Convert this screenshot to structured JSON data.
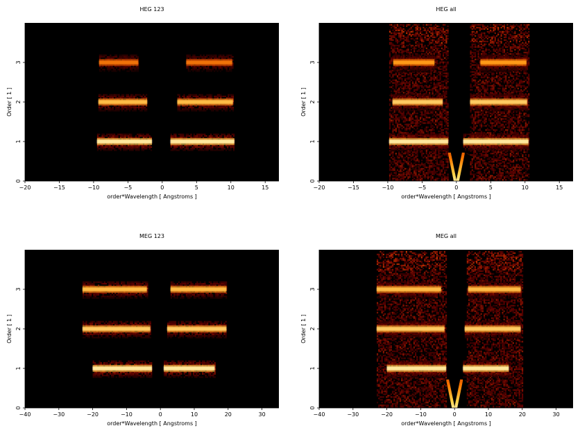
{
  "chart_data": [
    {
      "type": "heatmap",
      "title": "HEG 123",
      "xlabel": "order*Wavelength [ Angstroms ]",
      "ylabel": "Order [ 1 ]",
      "xlim": [
        -20,
        17
      ],
      "ylim": [
        0,
        4
      ],
      "xticks": [
        -20,
        -15,
        -10,
        -5,
        0,
        5,
        10,
        15
      ],
      "yticks": [
        0,
        1,
        2,
        3
      ],
      "background": "#000000",
      "colormap": [
        "#000000",
        "#5a0000",
        "#b52a00",
        "#ff7a00",
        "#ffd54a",
        "#ffffff"
      ],
      "bands": [
        {
          "order": 1,
          "xmin": -9.5,
          "xmax": -1.5,
          "intensity": 1.0
        },
        {
          "order": 1,
          "xmin": 1.2,
          "xmax": 10.5,
          "intensity": 1.0
        },
        {
          "order": 2,
          "xmin": -9.3,
          "xmax": -2.2,
          "intensity": 0.85
        },
        {
          "order": 2,
          "xmin": 2.2,
          "xmax": 10.3,
          "intensity": 0.85
        },
        {
          "order": 3,
          "xmin": -9.2,
          "xmax": -3.5,
          "intensity": 0.65
        },
        {
          "order": 3,
          "xmin": 3.5,
          "xmax": 10.2,
          "intensity": 0.65
        }
      ]
    },
    {
      "type": "heatmap",
      "title": "HEG all",
      "xlabel": "order*Wavelength [ Angstroms ]",
      "ylabel": "Order [ 1 ]",
      "xlim": [
        -20,
        17
      ],
      "ylim": [
        0,
        4
      ],
      "xticks": [
        -20,
        -15,
        -10,
        -5,
        0,
        5,
        10,
        15
      ],
      "yticks": [
        0,
        1,
        2,
        3
      ],
      "background": "#000000",
      "colormap": [
        "#000000",
        "#5a0000",
        "#b52a00",
        "#ff7a00",
        "#ffd54a",
        "#ffffff"
      ],
      "bands": [
        {
          "order": 1,
          "xmin": -9.8,
          "xmax": -1.2,
          "intensity": 1.0
        },
        {
          "order": 1,
          "xmin": 1.0,
          "xmax": 10.5,
          "intensity": 1.0
        },
        {
          "order": 2,
          "xmin": -9.3,
          "xmax": -2.0,
          "intensity": 0.9
        },
        {
          "order": 2,
          "xmin": 2.0,
          "xmax": 10.3,
          "intensity": 0.9
        },
        {
          "order": 3,
          "xmin": -9.2,
          "xmax": -3.2,
          "intensity": 0.75
        },
        {
          "order": 3,
          "xmin": 3.5,
          "xmax": 10.2,
          "intensity": 0.75
        }
      ],
      "noise": {
        "xmin": -9.8,
        "xmax": 10.5,
        "gap": [
          -1.2,
          1.8
        ],
        "level": 0.35
      },
      "zero_order_v": true
    },
    {
      "type": "heatmap",
      "title": "MEG 123",
      "xlabel": "order*Wavelength [ Angstroms ]",
      "ylabel": "Order [ 1 ]",
      "xlim": [
        -40,
        35
      ],
      "ylim": [
        0,
        4
      ],
      "xticks": [
        -40,
        -30,
        -20,
        -10,
        0,
        10,
        20,
        30
      ],
      "yticks": [
        0,
        1,
        2,
        3
      ],
      "background": "#000000",
      "colormap": [
        "#000000",
        "#5a0000",
        "#b52a00",
        "#ff7a00",
        "#ffd54a",
        "#ffffff"
      ],
      "bands": [
        {
          "order": 1,
          "xmin": -20,
          "xmax": -2.5,
          "intensity": 1.0
        },
        {
          "order": 1,
          "xmin": 1.0,
          "xmax": 16,
          "intensity": 1.0
        },
        {
          "order": 2,
          "xmin": -23,
          "xmax": -3,
          "intensity": 0.9
        },
        {
          "order": 2,
          "xmin": 2.0,
          "xmax": 19.5,
          "intensity": 0.9
        },
        {
          "order": 3,
          "xmin": -23,
          "xmax": -4,
          "intensity": 0.85
        },
        {
          "order": 3,
          "xmin": 3.0,
          "xmax": 19.5,
          "intensity": 0.85
        }
      ]
    },
    {
      "type": "heatmap",
      "title": "MEG all",
      "xlabel": "order*Wavelength [ Angstroms ]",
      "ylabel": "Order [ 1 ]",
      "xlim": [
        -40,
        35
      ],
      "ylim": [
        0,
        4
      ],
      "xticks": [
        -40,
        -30,
        -20,
        -10,
        0,
        10,
        20,
        30
      ],
      "yticks": [
        0,
        1,
        2,
        3
      ],
      "background": "#000000",
      "colormap": [
        "#000000",
        "#5a0000",
        "#b52a00",
        "#ff7a00",
        "#ffd54a",
        "#ffffff"
      ],
      "bands": [
        {
          "order": 1,
          "xmin": -20,
          "xmax": -2.5,
          "intensity": 1.0
        },
        {
          "order": 1,
          "xmin": 2.5,
          "xmax": 16,
          "intensity": 1.0
        },
        {
          "order": 2,
          "xmin": -23,
          "xmax": -3,
          "intensity": 0.9
        },
        {
          "order": 2,
          "xmin": 3.0,
          "xmax": 19.5,
          "intensity": 0.9
        },
        {
          "order": 3,
          "xmin": -23,
          "xmax": -4,
          "intensity": 0.85
        },
        {
          "order": 3,
          "xmin": 4.0,
          "xmax": 19.5,
          "intensity": 0.85
        }
      ],
      "noise": {
        "xmin": -23,
        "xmax": 20,
        "gap": [
          -2.5,
          3.5
        ],
        "level": 0.35
      },
      "zero_order_v": true
    }
  ]
}
